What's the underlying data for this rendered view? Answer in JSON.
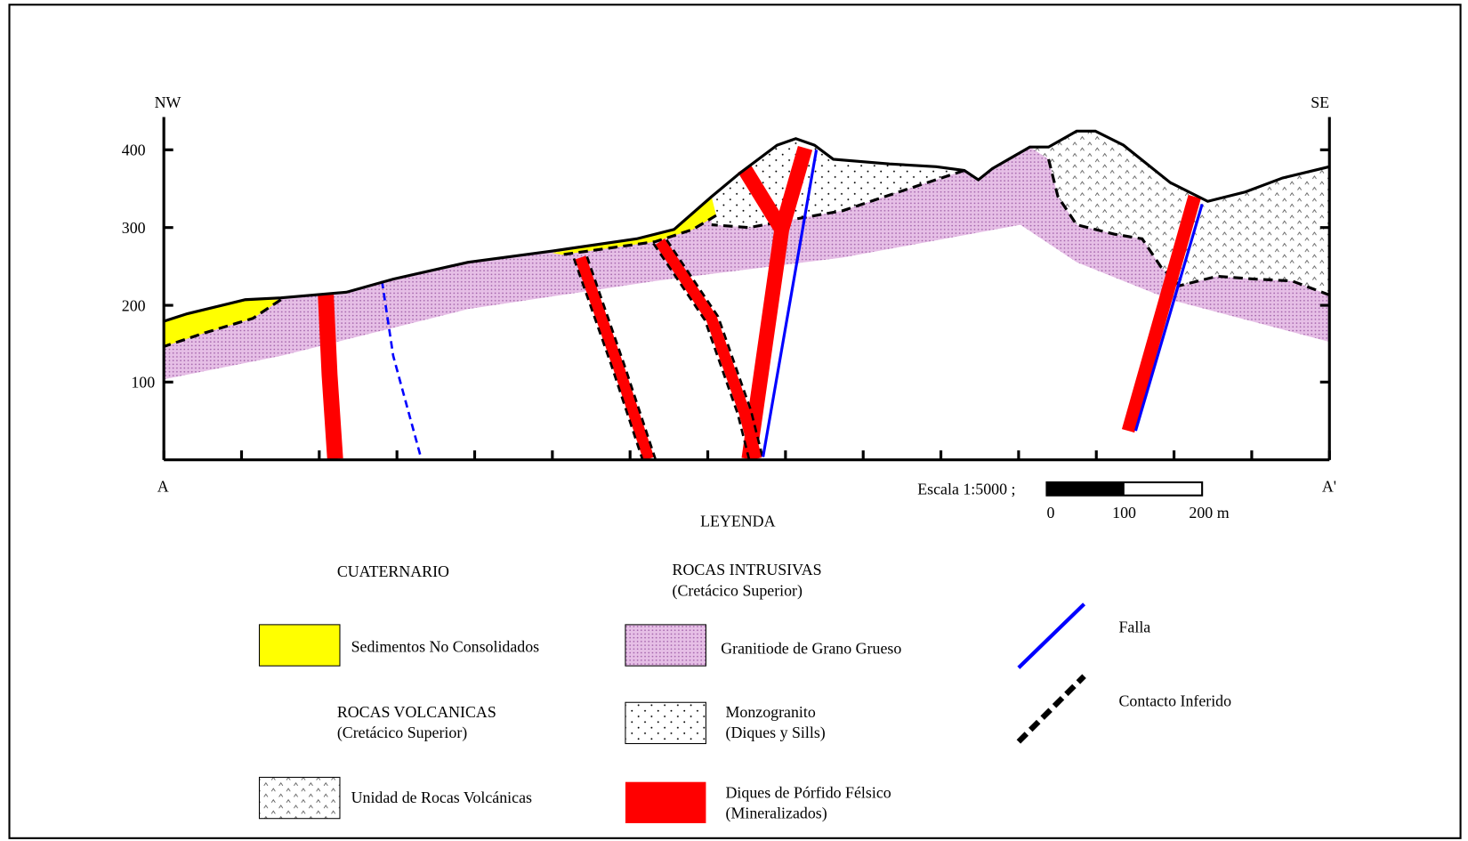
{
  "section": {
    "orientation": {
      "left": "NW",
      "right": "SE"
    },
    "ends": {
      "start": "A",
      "end": "A'"
    },
    "elevation_labels": [
      400,
      300,
      200,
      100
    ],
    "scale": {
      "label": "Escala 1:5000 ;",
      "ticks": [
        "0",
        "100",
        "200 m"
      ]
    }
  },
  "legend": {
    "title": "LEYENDA",
    "headings": {
      "cuaternario": "CUATERNARIO",
      "volcanicas": "ROCAS VOLCANICAS",
      "volcanicas_age": "(Cretácico Superior)",
      "intrusivas": "ROCAS INTRUSIVAS",
      "intrusivas_age": "(Cretácico Superior)"
    },
    "items": {
      "sedimentos": "Sedimentos No Consolidados",
      "volcanicas": "Unidad de Rocas Volcánicas",
      "granitoide": "Granitiode de Grano Grueso",
      "monzogranito": "Monzogranito",
      "monzogranito_sub": "(Diques y Sills)",
      "diques": "Diques de Pórfido Félsico",
      "diques_sub": "(Mineralizados)",
      "falla": "Falla",
      "contacto": "Contacto Inferido"
    }
  }
}
